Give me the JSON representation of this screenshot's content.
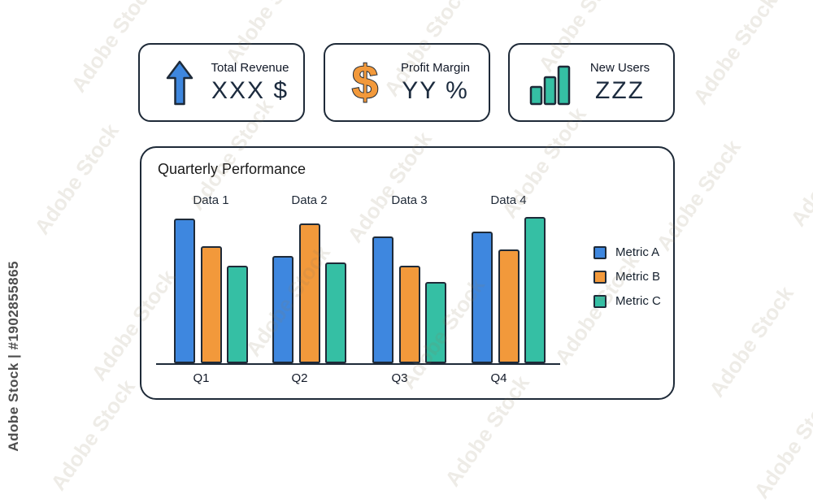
{
  "watermark": {
    "tile_text": "Adobe Stock",
    "side_text": "Adobe Stock | #1902855865"
  },
  "icons": {
    "dollar_glyph": "$"
  },
  "kpi_cards": [
    {
      "icon": "arrow-up-icon",
      "icon_color": "#3e87df",
      "label": "Total Revenue",
      "value": "XXX $"
    },
    {
      "icon": "dollar-icon",
      "icon_color": "#f2993b",
      "label": "Profit Margin",
      "value": "YY %"
    },
    {
      "icon": "bar-chart-icon",
      "icon_color": "#35bfa4",
      "label": "New Users",
      "value": "ZZZ"
    }
  ],
  "chart_card": {
    "title": "Quarterly Performance"
  },
  "chart_data": {
    "type": "bar",
    "title": "Quarterly Performance",
    "categories": [
      "Q1",
      "Q2",
      "Q3",
      "Q4"
    ],
    "group_labels": [
      "Data 1",
      "Data 2",
      "Data 3",
      "Data 4"
    ],
    "series": [
      {
        "name": "Metric A",
        "color": "#3e87df",
        "values": [
          89,
          66,
          78,
          81
        ]
      },
      {
        "name": "Metric B",
        "color": "#f2993b",
        "values": [
          72,
          86,
          60,
          70
        ]
      },
      {
        "name": "Metric C",
        "color": "#35bfa4",
        "values": [
          60,
          62,
          50,
          90
        ]
      }
    ],
    "ylim": [
      0,
      100
    ],
    "grid": false,
    "y_axis_visible": false,
    "x_axis_visible": true,
    "legend_position": "right",
    "bar_outline_color": "#1e2a38"
  }
}
